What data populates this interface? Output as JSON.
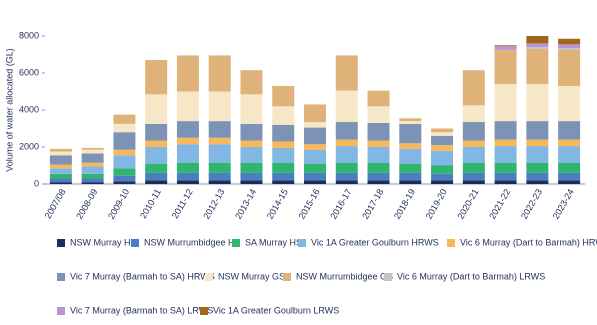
{
  "chart_data": {
    "type": "bar",
    "stacked": true,
    "y_label": "Volume of water allocated (GL)",
    "categories": [
      "2007/08",
      "2008-09",
      "2009-10",
      "2010-11",
      "2011-12",
      "2012-13",
      "2013-14",
      "2014-15",
      "2015-16",
      "2016-17",
      "2017-18",
      "2018-19",
      "2019-20",
      "2020-21",
      "2021-22",
      "2022-23",
      "2023-24"
    ],
    "ylim": [
      0,
      8000
    ],
    "yticks": [
      0,
      2000,
      4000,
      6000,
      8000
    ],
    "grid": false,
    "series": [
      {
        "name": "NSW Murray HS",
        "color": "#1f2d5a",
        "values": [
          100,
          100,
          150,
          200,
          200,
          200,
          200,
          200,
          200,
          200,
          200,
          200,
          200,
          200,
          200,
          200,
          200
        ]
      },
      {
        "name": "NSW Murrumbidgee HS",
        "color": "#4a7fc1",
        "values": [
          200,
          200,
          300,
          400,
          400,
          400,
          400,
          400,
          400,
          400,
          400,
          400,
          350,
          400,
          400,
          400,
          400
        ]
      },
      {
        "name": "SA Murray HS",
        "color": "#2fb56f",
        "values": [
          250,
          250,
          400,
          500,
          550,
          550,
          550,
          550,
          500,
          550,
          550,
          500,
          450,
          550,
          550,
          550,
          550
        ]
      },
      {
        "name": "Vic 1A Greater Goulburn HRWS",
        "color": "#82b6e3",
        "values": [
          300,
          400,
          700,
          900,
          1000,
          1000,
          850,
          800,
          750,
          900,
          850,
          800,
          800,
          850,
          900,
          900,
          900
        ]
      },
      {
        "name": "Vic 6 Murray (Dart to Barmah) HRWS",
        "color": "#f6b85a",
        "values": [
          200,
          200,
          300,
          350,
          350,
          350,
          350,
          350,
          300,
          350,
          350,
          300,
          300,
          350,
          350,
          350,
          350
        ]
      },
      {
        "name": "Vic 7 Murray (Barmah to SA) HRWS",
        "color": "#7d93b5",
        "values": [
          500,
          500,
          950,
          900,
          900,
          900,
          900,
          900,
          900,
          950,
          950,
          1050,
          500,
          1000,
          1000,
          1000,
          1000
        ]
      },
      {
        "name": "NSW Murray GS",
        "color": "#f6e7c6",
        "values": [
          200,
          200,
          450,
          1600,
          1600,
          1600,
          1600,
          1000,
          300,
          1700,
          900,
          150,
          200,
          900,
          2000,
          2000,
          1900
        ]
      },
      {
        "name": "NSW Murrumbidgee GS",
        "color": "#dfb27a",
        "values": [
          150,
          100,
          500,
          1850,
          1950,
          1950,
          1300,
          1100,
          950,
          1900,
          850,
          150,
          200,
          1900,
          1850,
          1900,
          1950
        ]
      },
      {
        "name": "Vic 6 Murray (Dart to Barmah) LRWS",
        "color": "#c4c4c4",
        "values": [
          0,
          0,
          0,
          0,
          0,
          0,
          0,
          0,
          0,
          0,
          0,
          0,
          0,
          0,
          0,
          100,
          100
        ]
      },
      {
        "name": "Vic 7 Murray (Barmah to SA) LRWS",
        "color": "#b995d8",
        "values": [
          0,
          0,
          0,
          0,
          0,
          0,
          0,
          0,
          0,
          0,
          0,
          0,
          0,
          0,
          200,
          200,
          200
        ]
      },
      {
        "name": "Vic 1A Greater Goulburn LRWS",
        "color": "#a0661a",
        "values": [
          0,
          0,
          0,
          0,
          0,
          0,
          0,
          0,
          0,
          0,
          0,
          0,
          0,
          0,
          50,
          400,
          300
        ]
      }
    ]
  }
}
